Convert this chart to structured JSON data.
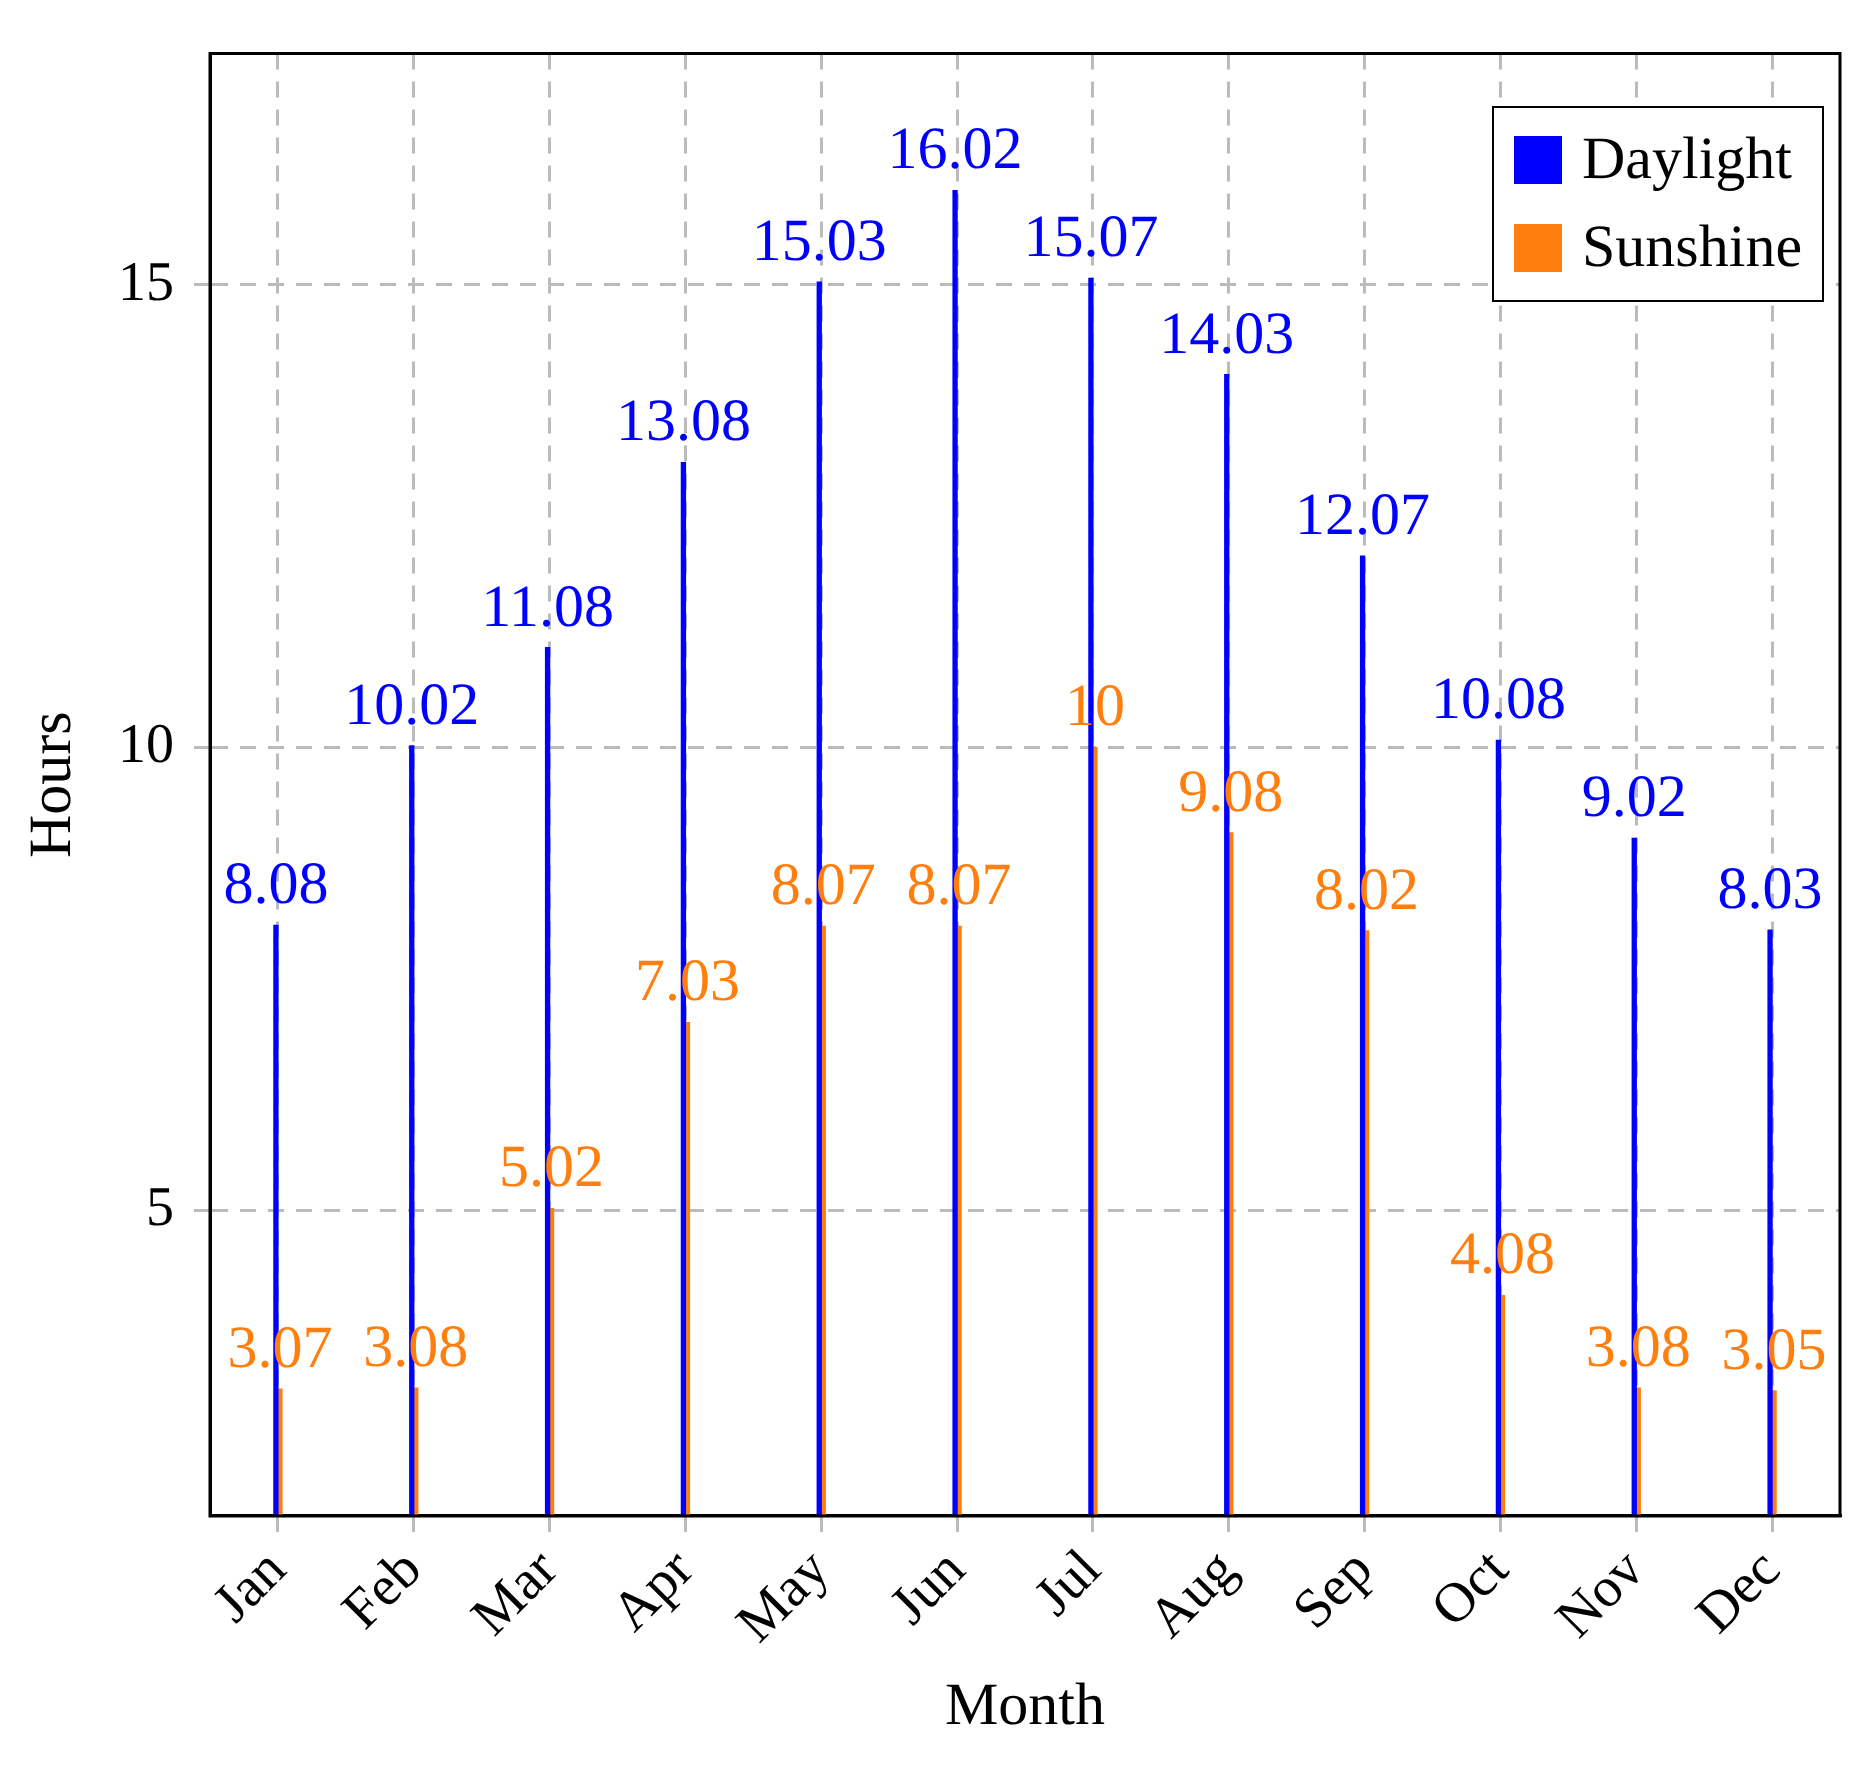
{
  "chart_data": {
    "type": "bar",
    "xlabel": "Month",
    "ylabel": "Hours",
    "categories": [
      "Jan",
      "Feb",
      "Mar",
      "Apr",
      "May",
      "Jun",
      "Jul",
      "Aug",
      "Sep",
      "Oct",
      "Nov",
      "Dec"
    ],
    "series": [
      {
        "name": "Daylight",
        "color": "#0000ff",
        "values": [
          8.08,
          10.02,
          11.08,
          13.08,
          15.03,
          16.02,
          15.07,
          14.03,
          12.07,
          10.08,
          9.02,
          8.03
        ]
      },
      {
        "name": "Sunshine",
        "color": "#ff7f0e",
        "values": [
          3.07,
          3.08,
          5.02,
          7.03,
          8.07,
          8.07,
          10,
          9.08,
          8.02,
          4.08,
          3.08,
          3.05
        ]
      }
    ],
    "ylim": [
      1.7,
      17.5
    ],
    "yticks": [
      5,
      10,
      15
    ],
    "grid": true,
    "legend": "top right",
    "data_labels": true
  }
}
